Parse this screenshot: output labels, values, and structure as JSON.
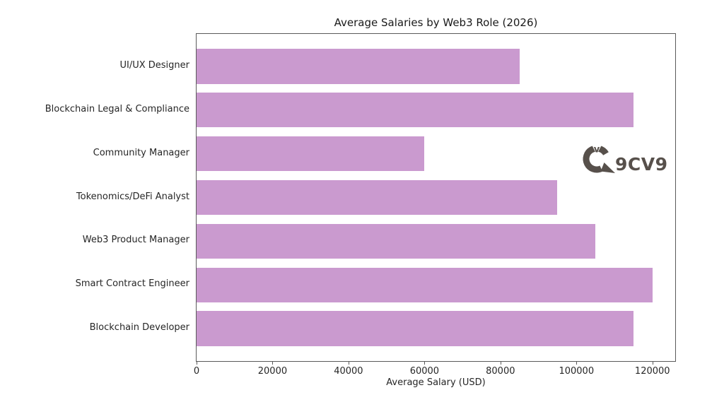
{
  "chart_data": {
    "type": "bar",
    "orientation": "horizontal",
    "title": "Average Salaries by Web3 Role (2026)",
    "xlabel": "Average Salary (USD)",
    "ylabel": "",
    "categories_top_to_bottom": [
      "UI/UX Designer",
      "Blockchain Legal & Compliance",
      "Community Manager",
      "Tokenomics/DeFi Analyst",
      "Web3 Product Manager",
      "Smart Contract Engineer",
      "Blockchain Developer"
    ],
    "values": [
      85000,
      115000,
      60000,
      95000,
      105000,
      120000,
      115000
    ],
    "xlim": [
      0,
      126000
    ],
    "xticks": [
      0,
      20000,
      40000,
      60000,
      80000,
      100000,
      120000
    ],
    "bar_color": "#CA9ACF",
    "grid": false,
    "legend": null
  },
  "branding": {
    "logo_text": "9CV9",
    "logo_color": "#57504B"
  }
}
